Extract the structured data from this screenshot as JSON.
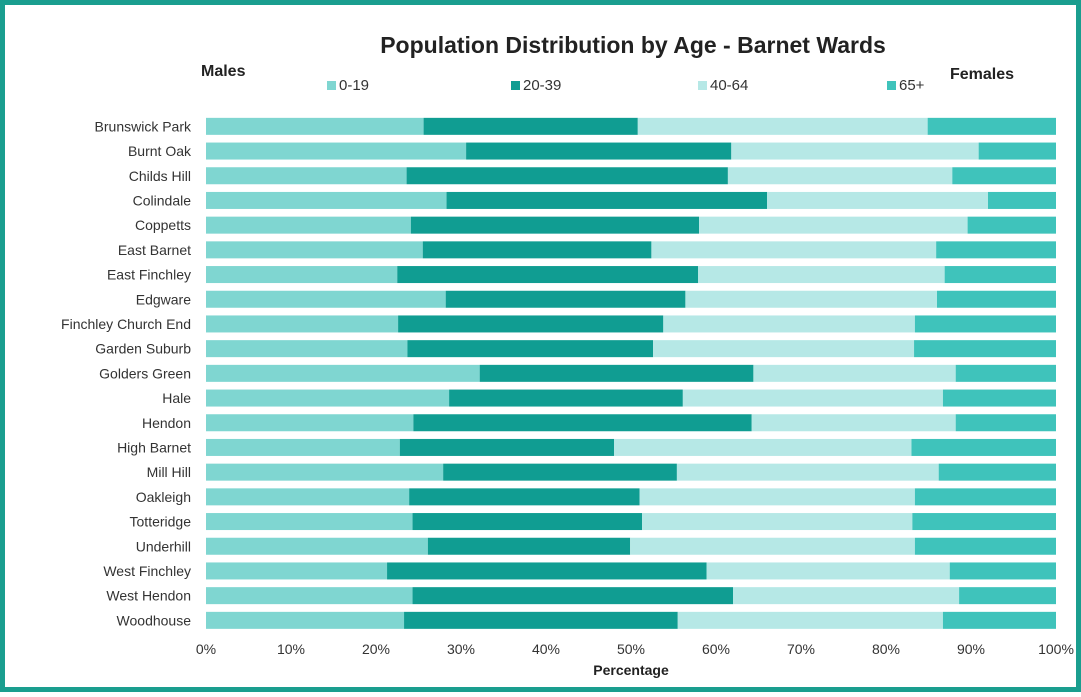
{
  "chart_data": {
    "type": "bar",
    "orientation": "horizontal",
    "stacked": true,
    "title": "Population Distribution by Age - Barnet Wards",
    "left_label": "Males",
    "right_label": "Females",
    "xlabel": "Percentage",
    "xlim": [
      0,
      100
    ],
    "x_ticks": [
      "0%",
      "10%",
      "20%",
      "30%",
      "40%",
      "50%",
      "60%",
      "70%",
      "80%",
      "90%",
      "100%"
    ],
    "legend_position": "top",
    "categories": [
      "Brunswick Park",
      "Burnt Oak",
      "Childs Hill",
      "Colindale",
      "Coppetts",
      "East Barnet",
      "East Finchley",
      "Edgware",
      "Finchley Church End",
      "Garden Suburb",
      "Golders Green",
      "Hale",
      "Hendon",
      "High Barnet",
      "Mill Hill",
      "Oakleigh",
      "Totteridge",
      "Underhill",
      "West Finchley",
      "West Hendon",
      "Woodhouse"
    ],
    "series": [
      {
        "name": "0-19",
        "color": "#7fd6d1",
        "values": [
          25.6,
          30.6,
          23.6,
          28.3,
          24.1,
          25.5,
          22.5,
          28.2,
          22.6,
          23.7,
          32.2,
          28.6,
          24.4,
          22.8,
          27.9,
          23.9,
          24.3,
          26.1,
          21.3,
          24.3,
          23.3
        ]
      },
      {
        "name": "20-39",
        "color": "#109d92",
        "values": [
          25.2,
          31.2,
          37.8,
          37.7,
          33.9,
          26.9,
          35.4,
          28.2,
          31.2,
          28.9,
          32.2,
          27.5,
          39.8,
          25.2,
          27.5,
          27.1,
          27.0,
          23.8,
          37.6,
          37.7,
          32.2
        ]
      },
      {
        "name": "40-64",
        "color": "#b6e8e6",
        "values": [
          34.1,
          29.1,
          26.4,
          26.0,
          31.6,
          33.5,
          29.0,
          29.6,
          29.6,
          30.7,
          23.8,
          30.6,
          24.0,
          35.0,
          30.8,
          32.4,
          31.8,
          33.5,
          28.6,
          26.6,
          31.2
        ]
      },
      {
        "name": "65+",
        "color": "#3fc3bb",
        "values": [
          15.1,
          9.1,
          12.2,
          8.0,
          10.4,
          14.1,
          13.1,
          14.0,
          16.6,
          16.7,
          11.8,
          13.3,
          11.8,
          17.0,
          13.8,
          16.6,
          16.9,
          16.6,
          12.5,
          11.4,
          13.3
        ]
      }
    ]
  }
}
